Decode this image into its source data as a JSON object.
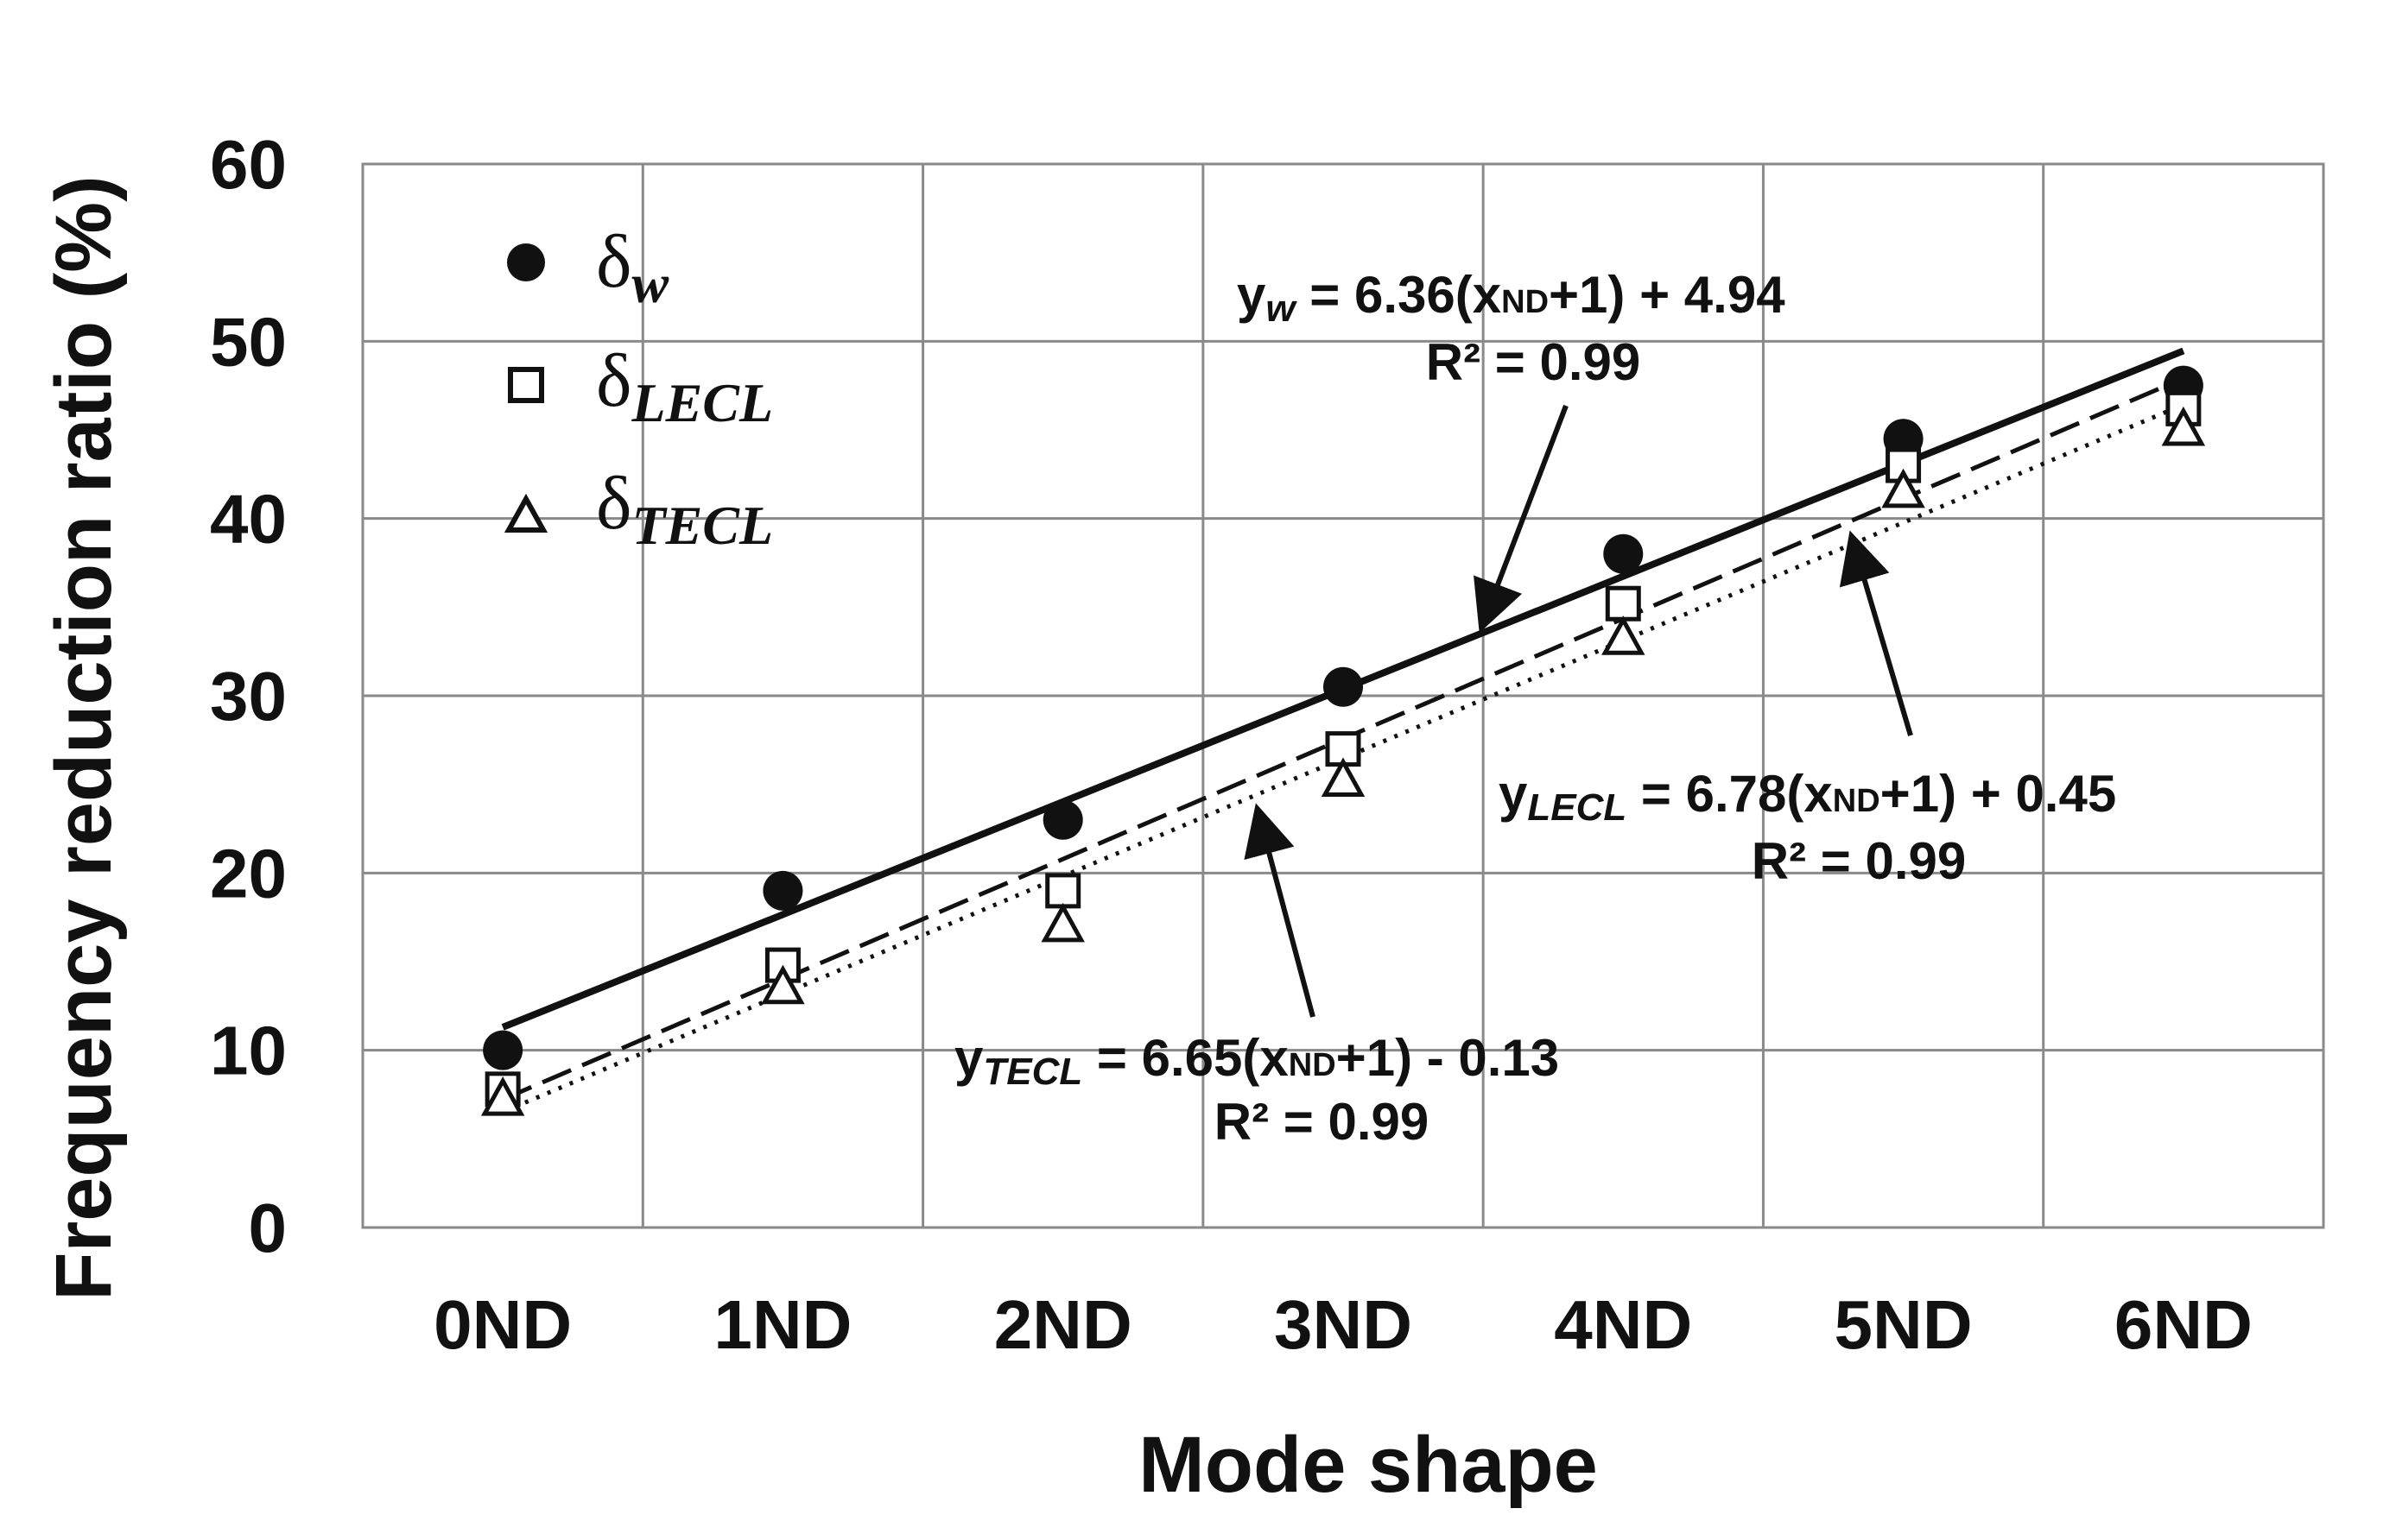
{
  "chart_data": {
    "type": "scatter",
    "title": "",
    "xlabel": "Mode shape",
    "ylabel": "Frequency reduction ratio (%)",
    "categories": [
      "0ND",
      "1ND",
      "2ND",
      "3ND",
      "4ND",
      "5ND",
      "6ND"
    ],
    "ylim": [
      0,
      60
    ],
    "yticks": [
      "0",
      "10",
      "20",
      "30",
      "40",
      "50",
      "60"
    ],
    "grid": true,
    "legend_position": "top-left",
    "series": [
      {
        "key": "w",
        "name": "δw",
        "symbol": "δ",
        "subscript": "w",
        "marker": "filled-circle",
        "line": "solid",
        "values": [
          10,
          19,
          23,
          30.5,
          38,
          44.5,
          47.5
        ],
        "fit": {
          "slope": 6.36,
          "intercept": 4.94
        }
      },
      {
        "key": "lecl",
        "name": "δLECL",
        "symbol": "δ",
        "subscript": "LECL",
        "marker": "open-square",
        "line": "dashed",
        "values": [
          7.8,
          14.8,
          19,
          27,
          35.2,
          43,
          46.2
        ],
        "fit": {
          "slope": 6.78,
          "intercept": 0.45
        }
      },
      {
        "key": "tecl",
        "name": "δTECL",
        "symbol": "δ",
        "subscript": "TECL",
        "marker": "open-triangle",
        "line": "dotted",
        "values": [
          7.2,
          13.5,
          17,
          25.2,
          33.2,
          41.5,
          45
        ],
        "fit": {
          "slope": 6.65,
          "intercept": -0.13
        }
      }
    ],
    "annotations": {
      "w": {
        "y": "y",
        "sub": "w",
        "mid": " = 6.36(x",
        "xsub": "ND",
        "tail": "+1)  + 4.94",
        "r2": "R² = 0.99"
      },
      "lecl": {
        "y": "y",
        "sub": "LECL",
        "mid": " = 6.78(x",
        "xsub": "ND",
        "tail": "+1)  + 0.45",
        "r2": "R² = 0.99"
      },
      "tecl": {
        "y": "y",
        "sub": "TECL",
        "mid": " = 6.65(x",
        "xsub": "ND",
        "tail": "+1)  - 0.13",
        "r2": "R² = 0.99"
      }
    }
  }
}
